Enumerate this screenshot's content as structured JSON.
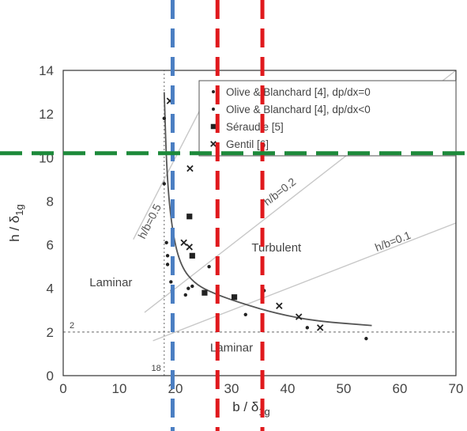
{
  "chart_data": {
    "type": "scatter",
    "title": "",
    "xlabel": "b / δ",
    "xlabel_sub": "1g",
    "ylabel": "h / δ",
    "ylabel_sub": "1g",
    "xlim": [
      0,
      70
    ],
    "ylim": [
      0,
      14
    ],
    "x_ticks": [
      "0",
      "10",
      "20",
      "30",
      "40",
      "50",
      "60",
      "70"
    ],
    "y_ticks": [
      "0",
      "2",
      "4",
      "6",
      "8",
      "10",
      "12",
      "14"
    ],
    "legend": {
      "position": "top-right",
      "entries": [
        {
          "marker": "dot",
          "label": "Olive & Blanchard [4], dp/dx=0"
        },
        {
          "marker": "dot",
          "label": "Olive & Blanchard [4], dp/dx<0"
        },
        {
          "marker": "square",
          "label": "Séraudie [5]"
        },
        {
          "marker": "cross",
          "label": "Gentil [6]"
        }
      ]
    },
    "series": [
      {
        "name": "Olive & Blanchard [4], dp/dx=0",
        "marker": "dot",
        "points": [
          [
            18,
            11.8
          ],
          [
            18,
            8.8
          ],
          [
            18.4,
            6.1
          ],
          [
            18.6,
            5.5
          ],
          [
            19.2,
            4.3
          ],
          [
            21.8,
            3.7
          ],
          [
            22.3,
            4.0
          ],
          [
            26,
            5.0
          ],
          [
            32.5,
            2.8
          ],
          [
            43.5,
            2.2
          ],
          [
            54,
            1.7
          ]
        ]
      },
      {
        "name": "Olive & Blanchard [4], dp/dx<0",
        "marker": "dot",
        "points": [
          [
            18.6,
            5.1
          ],
          [
            19.4,
            3.9
          ],
          [
            23,
            4.1
          ],
          [
            35.8,
            3.9
          ]
        ]
      },
      {
        "name": "Séraudie [5]",
        "marker": "square",
        "points": [
          [
            22.5,
            7.3
          ],
          [
            23,
            5.5
          ],
          [
            25.2,
            3.8
          ],
          [
            30.5,
            3.6
          ]
        ]
      },
      {
        "name": "Gentil [6]",
        "marker": "cross",
        "points": [
          [
            19,
            12.6
          ],
          [
            22.6,
            9.5
          ],
          [
            21.5,
            6.1
          ],
          [
            22.5,
            5.9
          ],
          [
            38.5,
            3.2
          ],
          [
            42,
            2.7
          ],
          [
            45.8,
            2.2
          ]
        ]
      }
    ],
    "ratio_lines": [
      {
        "label": "h/b=0.5",
        "points": [
          [
            12.5,
            6.25
          ],
          [
            26,
            13
          ]
        ]
      },
      {
        "label": "h/b=0.2",
        "points": [
          [
            14.5,
            2.9
          ],
          [
            70,
            14
          ]
        ]
      },
      {
        "label": "h/b=0.1",
        "points": [
          [
            16,
            1.6
          ],
          [
            70,
            7
          ]
        ]
      }
    ],
    "boundary_curve": [
      [
        18,
        13
      ],
      [
        18.5,
        9
      ],
      [
        19.5,
        6.5
      ],
      [
        21,
        5
      ],
      [
        23.5,
        4.2
      ],
      [
        27,
        3.75
      ],
      [
        32,
        3.3
      ],
      [
        38,
        2.85
      ],
      [
        45,
        2.5
      ],
      [
        55,
        2.3
      ]
    ],
    "reference_lines": {
      "horizontal_value": 2,
      "horizontal_label": "2",
      "vertical_value": 18,
      "vertical_label": "18"
    },
    "overlay_lines": {
      "blue_vertical_x": 19.5,
      "red_vertical_x": [
        27.5,
        35.5
      ],
      "green_horizontal_y": 10.2
    },
    "region_labels": [
      {
        "text": "Laminar",
        "x": 8.5,
        "y": 4.1
      },
      {
        "text": "Turbulent",
        "x": 38,
        "y": 5.7
      },
      {
        "text": "Laminar",
        "x": 30,
        "y": 1.1
      }
    ],
    "colors": {
      "blue_dash": "#4a7ec2",
      "red_dash": "#e0191d",
      "green_dash": "#1d8a3a",
      "ratio_line": "#c8c8c8",
      "curve": "#555555",
      "marker": "#222222"
    }
  }
}
